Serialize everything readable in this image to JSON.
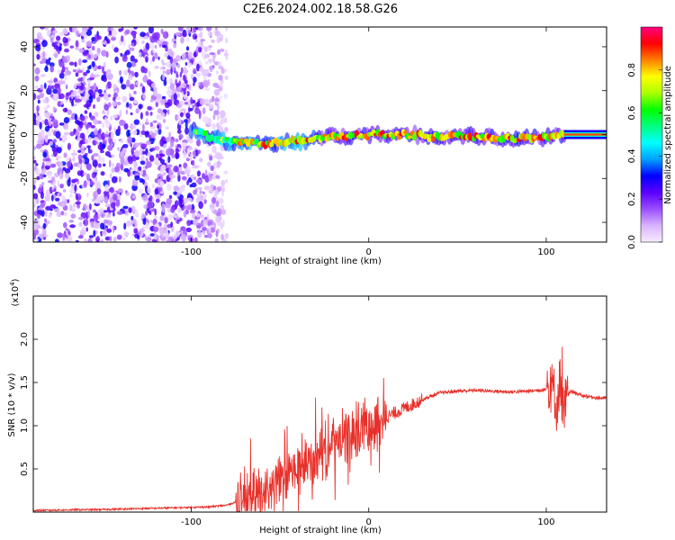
{
  "title": "C2E6.2024.002.18.58.G26",
  "chart_data": [
    {
      "type": "heatmap",
      "xlabel": "Height of straight line (km)",
      "ylabel": "Frequency (Hz)",
      "xlim": [
        -189,
        134
      ],
      "ylim": [
        -49,
        49
      ],
      "xticks": [
        -100,
        0,
        100
      ],
      "yticks": [
        -40,
        -20,
        0,
        20,
        40
      ],
      "colorbar": {
        "label": "Normalized spectral amplitude",
        "range": [
          0.0,
          1.0
        ],
        "ticks": [
          0.0,
          0.2,
          0.4,
          0.6,
          0.8
        ],
        "colors": [
          "#f6ecff",
          "#d9b3ff",
          "#9a4dff",
          "#5a00ff",
          "#0000ff",
          "#00a0ff",
          "#00ffff",
          "#00ff80",
          "#00ff00",
          "#aaff00",
          "#ffff00",
          "#ff8000",
          "#ff0000",
          "#ff0080"
        ]
      },
      "trace": {
        "description_points_km": [
          -98,
          -90,
          -80,
          -60,
          -40,
          -20,
          0,
          20,
          40,
          60,
          80,
          100,
          108
        ],
        "frequency_hz": [
          2,
          -1,
          -3,
          -4,
          -3,
          -1,
          0,
          0,
          -1,
          -1,
          -2,
          -1,
          0
        ]
      }
    },
    {
      "type": "line",
      "xlabel": "Height of straight line (km)",
      "ylabel": "SNR (10 * v/v)",
      "yunit_label": "(x10",
      "yunit_exp": "4",
      "xlim": [
        -189,
        134
      ],
      "ylim": [
        0,
        2.5
      ],
      "xticks": [
        -100,
        0,
        100
      ],
      "yticks": [
        0.5,
        1.0,
        1.5,
        2.0
      ],
      "line_color": "#e8302a",
      "series": [
        {
          "x": [
            -189,
            -150,
            -110,
            -90,
            -80,
            -70,
            -60,
            -50,
            -40,
            -30,
            -20,
            -10,
            0,
            10,
            20,
            30,
            40,
            50,
            60,
            70,
            80,
            90,
            100,
            104,
            106,
            108,
            110,
            112,
            114,
            120,
            130,
            134
          ],
          "values": [
            0.02,
            0.03,
            0.05,
            0.06,
            0.08,
            0.15,
            0.25,
            0.35,
            0.5,
            0.6,
            0.78,
            0.9,
            1.02,
            1.1,
            1.2,
            1.3,
            1.38,
            1.4,
            1.41,
            1.4,
            1.39,
            1.4,
            1.42,
            1.45,
            1.2,
            1.6,
            1.1,
            1.35,
            1.4,
            1.35,
            1.32,
            1.32
          ]
        }
      ]
    }
  ]
}
